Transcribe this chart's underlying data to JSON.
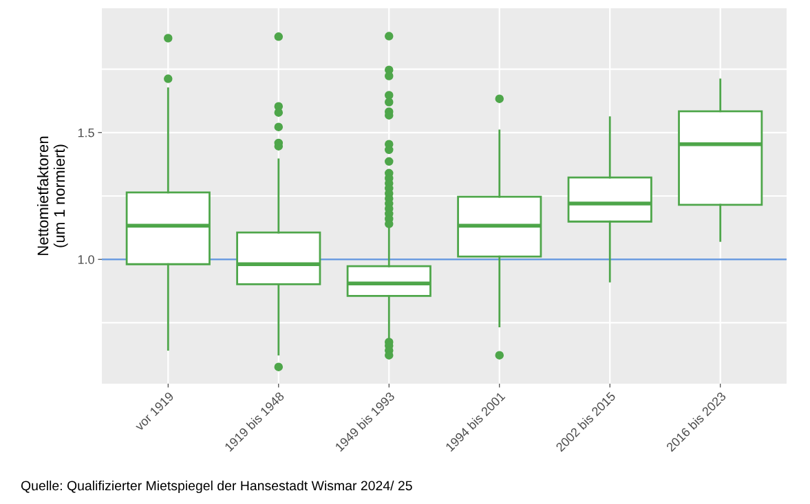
{
  "chart_data": {
    "type": "box",
    "ylabel": "Nettomietfaktoren\n(um 1 normiert)",
    "categories": [
      "vor 1919",
      "1919 bis 1948",
      "1949 bis 1993",
      "1994 bis 2001",
      "2002 bis 2015",
      "2016 bis 2023"
    ],
    "color": "#4ea64a",
    "boxes": [
      {
        "low": 0.644,
        "q1": 0.981,
        "median": 1.133,
        "q3": 1.264,
        "high": 1.674,
        "outliers": [
          1.872,
          1.712
        ]
      },
      {
        "low": 0.625,
        "q1": 0.902,
        "median": 0.981,
        "q3": 1.106,
        "high": 1.394,
        "outliers": [
          1.878,
          1.603,
          1.579,
          1.522,
          1.459,
          1.446,
          0.576
        ]
      },
      {
        "low": 0.688,
        "q1": 0.856,
        "median": 0.905,
        "q3": 0.973,
        "high": 1.13,
        "outliers": [
          1.88,
          1.747,
          1.723,
          1.647,
          1.62,
          1.582,
          1.568,
          1.454,
          1.432,
          1.386,
          1.34,
          1.32,
          1.3,
          1.28,
          1.26,
          1.24,
          1.22,
          1.2,
          1.18,
          1.16,
          1.14,
          0.674,
          0.66,
          0.641,
          0.622
        ]
      },
      {
        "low": 0.736,
        "q1": 1.011,
        "median": 1.133,
        "q3": 1.247,
        "high": 1.508,
        "outliers": [
          1.633,
          0.622
        ]
      },
      {
        "low": 0.913,
        "q1": 1.149,
        "median": 1.22,
        "q3": 1.323,
        "high": 1.56
      },
      {
        "low": 1.073,
        "q1": 1.215,
        "median": 1.454,
        "q3": 1.584,
        "high": 1.709
      }
    ],
    "ylim": [
      0.51,
      1.99
    ],
    "yticks": [
      {
        "value": 0.75,
        "label": null
      },
      {
        "value": 1.0,
        "label": "1.0"
      },
      {
        "value": 1.25,
        "label": null
      },
      1.5,
      {
        "value": 1.75,
        "label": null
      }
    ],
    "ref_lines": [
      {
        "axis": "y",
        "value": 1.0,
        "label": null,
        "color": "#6a9be0"
      }
    ],
    "grid": true,
    "annotations": [
      "Quelle: Qualifizierter Mietspiegel der Hansestadt Wismar 2024/ 25"
    ]
  }
}
